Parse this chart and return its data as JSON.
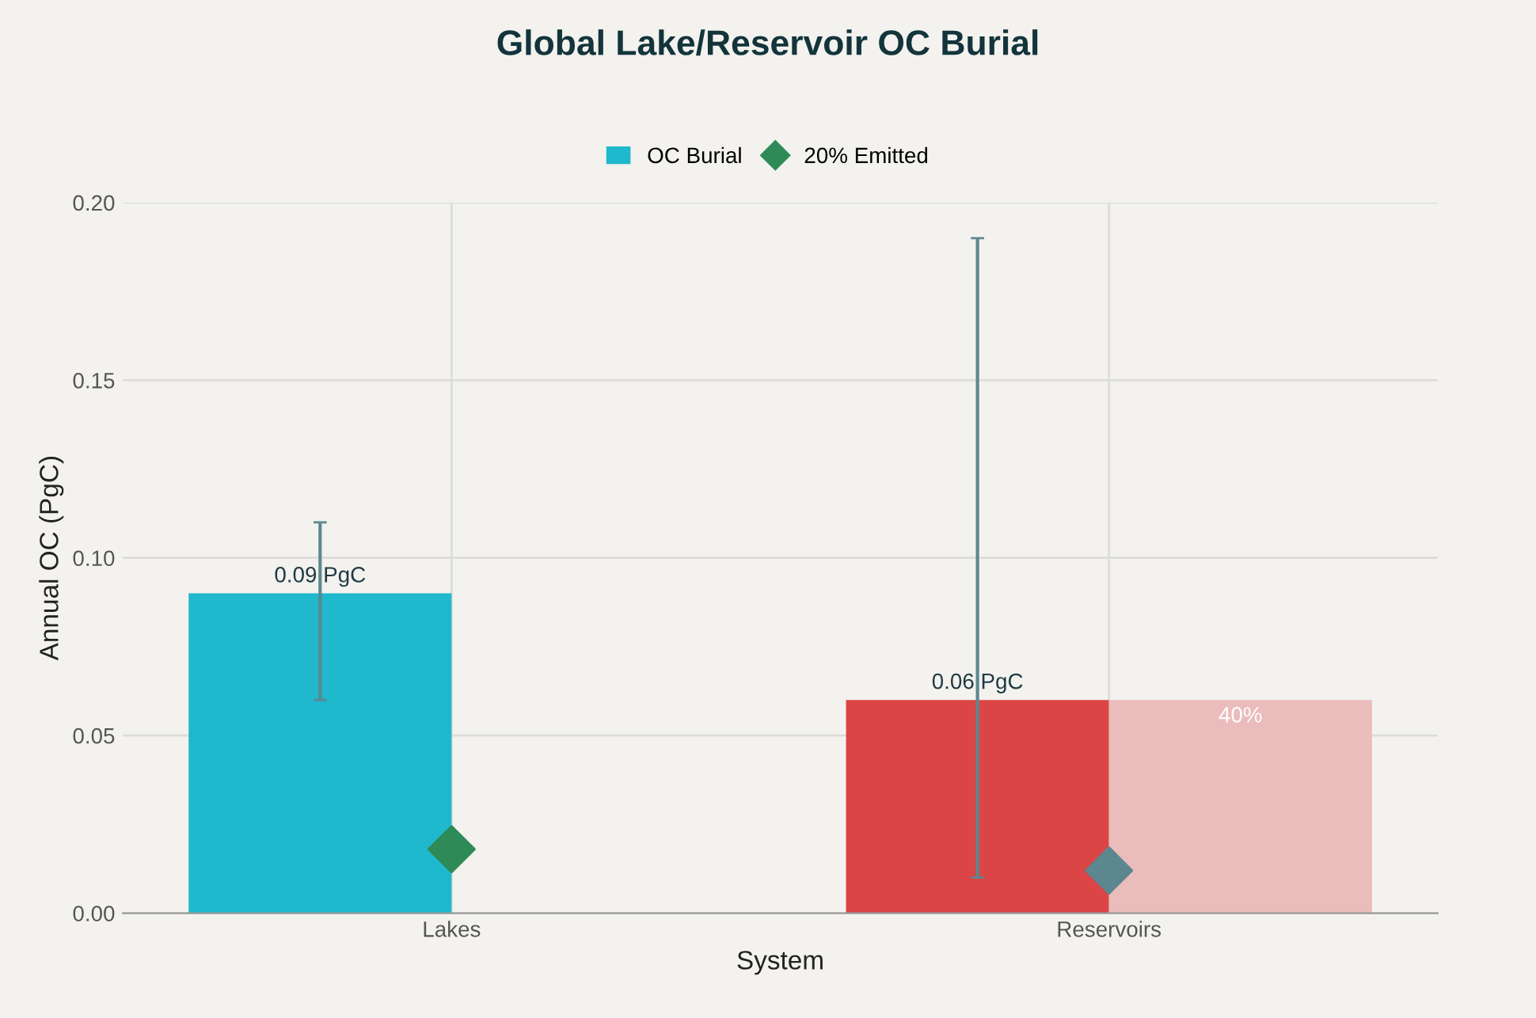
{
  "chart_data": {
    "type": "bar",
    "title": "Global Lake/Reservoir OC Burial",
    "xlabel": "System",
    "ylabel": "Annual OC (PgC)",
    "categories": [
      "Lakes",
      "Reservoirs"
    ],
    "series": [
      {
        "name": "OC Burial",
        "colors": [
          "#1fb8cd",
          "#db4545"
        ],
        "values": [
          0.09,
          0.06
        ],
        "errors": [
          [
            0.06,
            0.11
          ],
          [
            0.01,
            0.19
          ]
        ],
        "value_labels": [
          "0.09 PgC",
          "0.06 PgC"
        ]
      },
      {
        "color": "#ebbcbc",
        "values": [
          null,
          0.06
        ]
      },
      {
        "name": "20% Emitted",
        "type": "scatter",
        "colors": [
          "#2e8b57",
          "#5d878f"
        ],
        "values": [
          0.018,
          0.012
        ],
        "marker": "diamond"
      }
    ],
    "ylim": [
      0,
      0.2
    ],
    "yticks": [
      {
        "value": 0,
        "label": "0.00"
      },
      {
        "value": 0.05,
        "label": "0.05"
      },
      {
        "value": 0.1,
        "label": "0.10"
      },
      {
        "value": 0.15,
        "label": "0.15"
      },
      {
        "value": 0.2,
        "label": "0.20"
      }
    ],
    "annotations": [
      "40%"
    ],
    "grid": true,
    "legend": "top"
  }
}
